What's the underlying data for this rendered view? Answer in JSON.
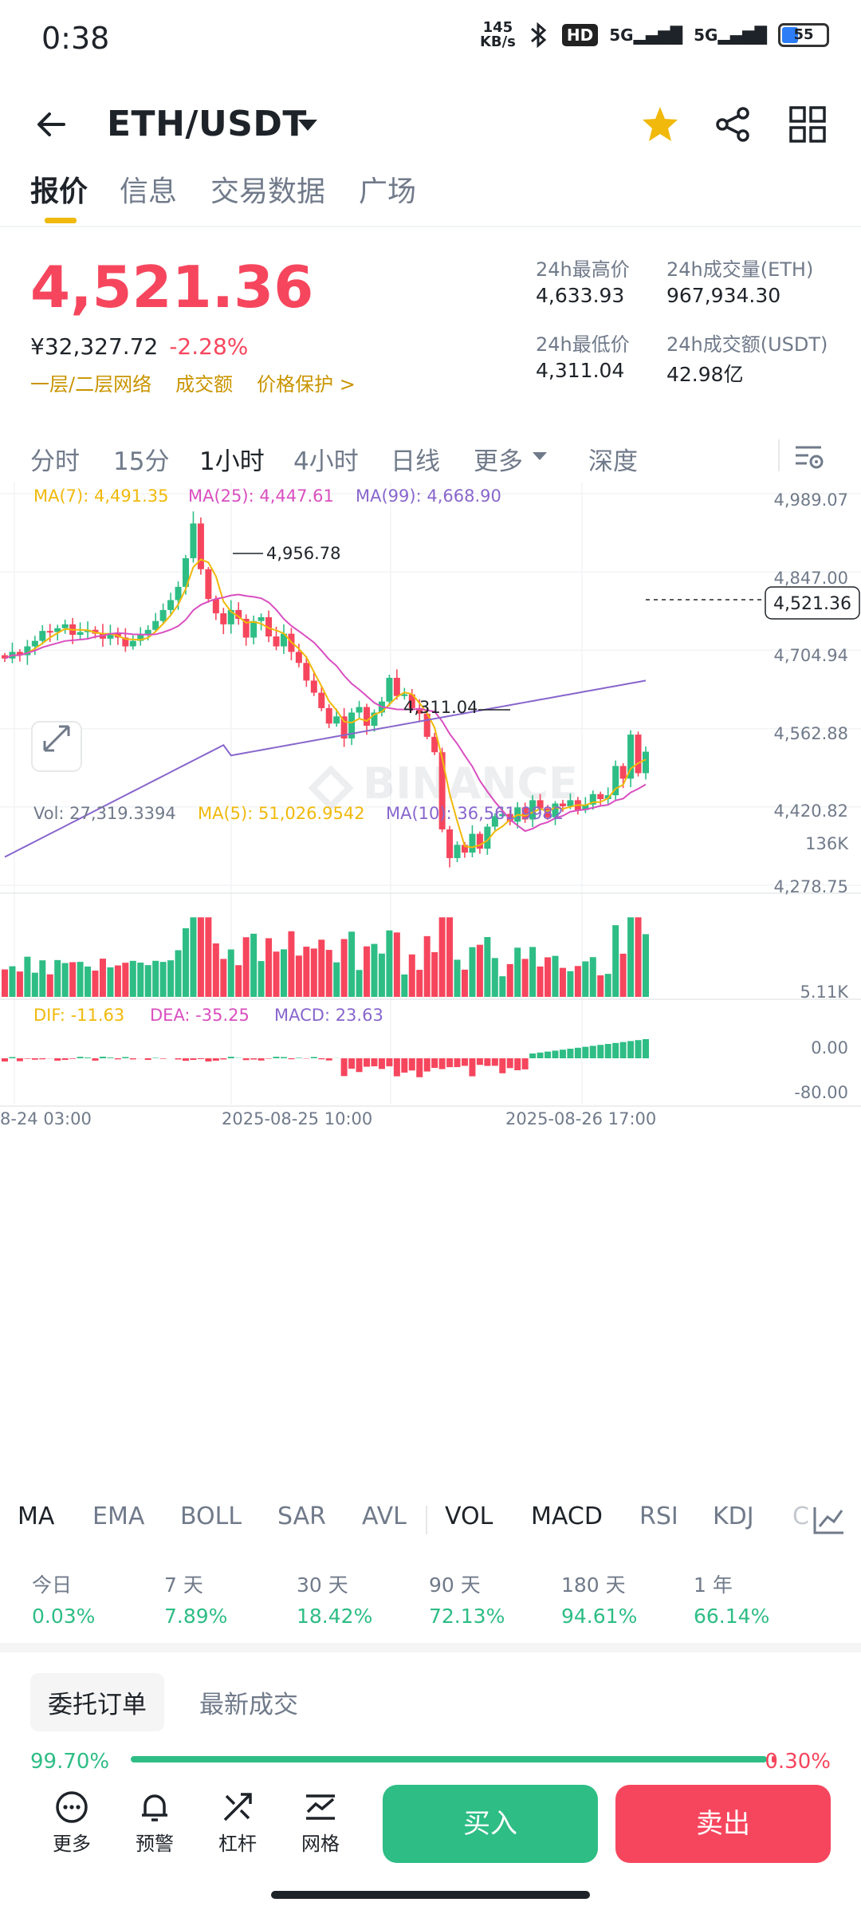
{
  "status": {
    "time": "0:38",
    "net_speed": "145",
    "net_unit": "KB/s",
    "hd": "HD",
    "sig1": "5G",
    "sig2": "5G",
    "battery": "55"
  },
  "header": {
    "pair": "ETH/USDT",
    "icons": [
      "back-arrow-icon",
      "dropdown-caret-icon",
      "star-icon",
      "share-icon",
      "grid-icon"
    ]
  },
  "tabs": [
    "报价",
    "信息",
    "交易数据",
    "广场"
  ],
  "quote": {
    "price": "4,521.36",
    "cny": "¥32,327.72",
    "change": "-2.28%",
    "links": [
      "一层/二层网络",
      "成交额",
      "价格保护 >"
    ]
  },
  "stats": {
    "high_label": "24h最高价",
    "high": "4,633.93",
    "low_label": "24h最低价",
    "low": "4,311.04",
    "vol_label": "24h成交量(ETH)",
    "vol": "967,934.30",
    "amt_label": "24h成交额(USDT)",
    "amt": "42.98亿"
  },
  "periods": [
    "分时",
    "15分",
    "1小时",
    "4小时",
    "日线",
    "更多",
    "深度"
  ],
  "chart": {
    "ma7": "MA(7): 4,491.35",
    "ma25": "MA(25): 4,447.61",
    "ma99": "MA(99): 4,668.90",
    "y_ticks": [
      "4,989.07",
      "4,847.00",
      "4,704.94",
      "4,562.88",
      "4,420.82",
      "4,278.75"
    ],
    "hi_label": "4,956.78",
    "lo_label": "4,311.04",
    "current": "4,521.36",
    "watermark": "BINANCE",
    "vol_label": "Vol: 27,319.3394",
    "vol_ma5": "MA(5): 51,026.9542",
    "vol_ma10": "MA(10): 36,561.9982",
    "vol_ticks": [
      "136K",
      "5.11K"
    ],
    "dif": "DIF: -11.63",
    "dea": "DEA: -35.25",
    "macd": "MACD: 23.63",
    "macd_ticks": [
      "0.00",
      "-80.00"
    ],
    "x_ticks": [
      "8-24 03:00",
      "2025-08-25 10:00",
      "2025-08-26 17:00"
    ],
    "colors": {
      "up": "#2ebd85",
      "down": "#f6465d",
      "ma7": "#f0b90b",
      "ma25": "#d94fc0",
      "ma99": "#8866cc"
    }
  },
  "chart_data": {
    "type": "candlestick",
    "title": "ETH/USDT",
    "interval": "1小时",
    "y_range": [
      4278.75,
      4989.07
    ],
    "high": {
      "value": 4956.78
    },
    "low": {
      "value": 4311.04
    },
    "last": 4521.36,
    "closes": [
      4690,
      4702,
      4696,
      4712,
      4722,
      4740,
      4738,
      4745,
      4752,
      4733,
      4738,
      4742,
      4735,
      4726,
      4736,
      4728,
      4712,
      4722,
      4734,
      4742,
      4758,
      4778,
      4796,
      4820,
      4872,
      4935,
      4852,
      4798,
      4772,
      4752,
      4778,
      4762,
      4728,
      4758,
      4765,
      4730,
      4712,
      4735,
      4702,
      4682,
      4650,
      4628,
      4600,
      4572,
      4585,
      4545,
      4592,
      4602,
      4568,
      4592,
      4612,
      4655,
      4622,
      4625,
      4600,
      4590,
      4548,
      4520,
      4380,
      4328,
      4352,
      4338,
      4372,
      4345,
      4385,
      4404,
      4408,
      4394,
      4420,
      4398,
      4433,
      4418,
      4402,
      4427,
      4422,
      4433,
      4415,
      4425,
      4444,
      4435,
      4442,
      4495,
      4472,
      4552,
      4482,
      4521
    ]
  },
  "indicators": [
    "MA",
    "EMA",
    "BOLL",
    "SAR",
    "AVL",
    "VOL",
    "MACD",
    "RSI",
    "KDJ",
    "C"
  ],
  "performance": [
    {
      "label": "今日",
      "value": "0.03%"
    },
    {
      "label": "7 天",
      "value": "7.89%"
    },
    {
      "label": "30 天",
      "value": "18.42%"
    },
    {
      "label": "90 天",
      "value": "72.13%"
    },
    {
      "label": "180 天",
      "value": "94.61%"
    },
    {
      "label": "1 年",
      "value": "66.14%"
    }
  ],
  "orders": {
    "tabs": [
      "委托订单",
      "最新成交"
    ],
    "buy_pct": "99.70%",
    "sell_pct": "0.30%",
    "buy_ratio": 0.997
  },
  "bottom": {
    "items": [
      "更多",
      "预警",
      "杠杆",
      "网格"
    ],
    "buy": "买入",
    "sell": "卖出"
  }
}
